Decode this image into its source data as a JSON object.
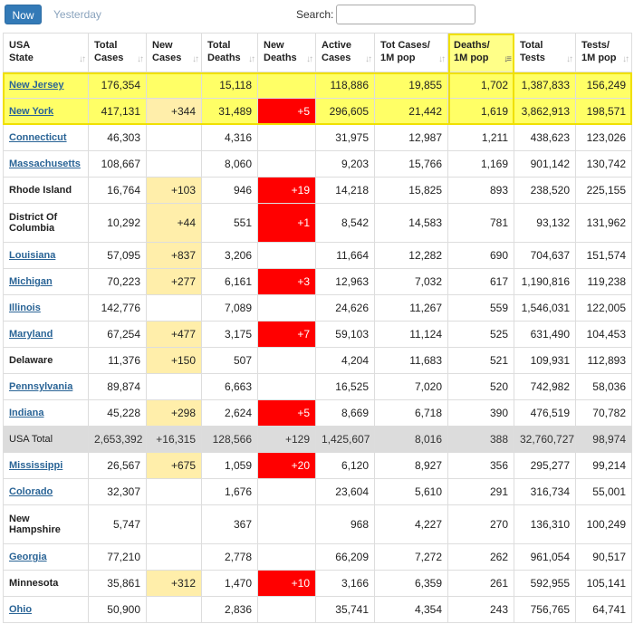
{
  "toolbar": {
    "now_label": "Now",
    "yesterday_label": "Yesterday",
    "search_label": "Search:",
    "search_value": ""
  },
  "columns": [
    {
      "l1": "USA",
      "l2": "State"
    },
    {
      "l1": "Total",
      "l2": "Cases"
    },
    {
      "l1": "New",
      "l2": "Cases"
    },
    {
      "l1": "Total",
      "l2": "Deaths"
    },
    {
      "l1": "New",
      "l2": "Deaths"
    },
    {
      "l1": "Active",
      "l2": "Cases"
    },
    {
      "l1": "Tot Cases/",
      "l2": "1M pop"
    },
    {
      "l1": "Deaths/",
      "l2": "1M pop"
    },
    {
      "l1": "Total",
      "l2": "Tests"
    },
    {
      "l1": "Tests/",
      "l2": "1M pop"
    }
  ],
  "sort_icons": {
    "default": "↓↑",
    "active": "↓≡"
  },
  "rows": [
    {
      "state": "New Jersey",
      "link": true,
      "highlight": true,
      "cells": [
        "176,354",
        "",
        "15,118",
        "",
        "118,886",
        "19,855",
        "1,702",
        "1,387,833",
        "156,249"
      ]
    },
    {
      "state": "New York",
      "link": true,
      "highlight": true,
      "cells": [
        "417,131",
        "+344",
        "31,489",
        "+5",
        "296,605",
        "21,442",
        "1,619",
        "3,862,913",
        "198,571"
      ]
    },
    {
      "state": "Connecticut",
      "link": true,
      "cells": [
        "46,303",
        "",
        "4,316",
        "",
        "31,975",
        "12,987",
        "1,211",
        "438,623",
        "123,026"
      ]
    },
    {
      "state": "Massachusetts",
      "link": true,
      "cells": [
        "108,667",
        "",
        "8,060",
        "",
        "9,203",
        "15,766",
        "1,169",
        "901,142",
        "130,742"
      ]
    },
    {
      "state": "Rhode Island",
      "link": false,
      "cells": [
        "16,764",
        "+103",
        "946",
        "+19",
        "14,218",
        "15,825",
        "893",
        "238,520",
        "225,155"
      ]
    },
    {
      "state": "District Of Columbia",
      "link": false,
      "tall": true,
      "cells": [
        "10,292",
        "+44",
        "551",
        "+1",
        "8,542",
        "14,583",
        "781",
        "93,132",
        "131,962"
      ]
    },
    {
      "state": "Louisiana",
      "link": true,
      "cells": [
        "57,095",
        "+837",
        "3,206",
        "",
        "11,664",
        "12,282",
        "690",
        "704,637",
        "151,574"
      ]
    },
    {
      "state": "Michigan",
      "link": true,
      "cells": [
        "70,223",
        "+277",
        "6,161",
        "+3",
        "12,963",
        "7,032",
        "617",
        "1,190,816",
        "119,238"
      ]
    },
    {
      "state": "Illinois",
      "link": true,
      "cells": [
        "142,776",
        "",
        "7,089",
        "",
        "24,626",
        "11,267",
        "559",
        "1,546,031",
        "122,005"
      ]
    },
    {
      "state": "Maryland",
      "link": true,
      "cells": [
        "67,254",
        "+477",
        "3,175",
        "+7",
        "59,103",
        "11,124",
        "525",
        "631,490",
        "104,453"
      ]
    },
    {
      "state": "Delaware",
      "link": false,
      "cells": [
        "11,376",
        "+150",
        "507",
        "",
        "4,204",
        "11,683",
        "521",
        "109,931",
        "112,893"
      ]
    },
    {
      "state": "Pennsylvania",
      "link": true,
      "cells": [
        "89,874",
        "",
        "6,663",
        "",
        "16,525",
        "7,020",
        "520",
        "742,982",
        "58,036"
      ]
    },
    {
      "state": "Indiana",
      "link": true,
      "cells": [
        "45,228",
        "+298",
        "2,624",
        "+5",
        "8,669",
        "6,718",
        "390",
        "476,519",
        "70,782"
      ]
    },
    {
      "state": "USA Total",
      "link": false,
      "total": true,
      "cells": [
        "2,653,392",
        "+16,315",
        "128,566",
        "+129",
        "1,425,607",
        "8,016",
        "388",
        "32,760,727",
        "98,974"
      ]
    },
    {
      "state": "Mississippi",
      "link": true,
      "cells": [
        "26,567",
        "+675",
        "1,059",
        "+20",
        "6,120",
        "8,927",
        "356",
        "295,277",
        "99,214"
      ]
    },
    {
      "state": "Colorado",
      "link": true,
      "cells": [
        "32,307",
        "",
        "1,676",
        "",
        "23,604",
        "5,610",
        "291",
        "316,734",
        "55,001"
      ]
    },
    {
      "state": "New Hampshire",
      "link": false,
      "tall": true,
      "cells": [
        "5,747",
        "",
        "367",
        "",
        "968",
        "4,227",
        "270",
        "136,310",
        "100,249"
      ]
    },
    {
      "state": "Georgia",
      "link": true,
      "cells": [
        "77,210",
        "",
        "2,778",
        "",
        "66,209",
        "7,272",
        "262",
        "961,054",
        "90,517"
      ]
    },
    {
      "state": "Minnesota",
      "link": false,
      "cells": [
        "35,861",
        "+312",
        "1,470",
        "+10",
        "3,166",
        "6,359",
        "261",
        "592,955",
        "105,141"
      ]
    },
    {
      "state": "Ohio",
      "link": true,
      "cells": [
        "50,900",
        "",
        "2,836",
        "",
        "35,741",
        "4,354",
        "243",
        "756,765",
        "64,741"
      ]
    }
  ],
  "colors": {
    "now_button": "#337ab7",
    "new_cases_bg": "#ffeeaa",
    "new_deaths_bg": "#ff0000",
    "highlight_bg": "#ffff66",
    "total_row_bg": "#dcdcdc",
    "link": "#2a6496"
  }
}
